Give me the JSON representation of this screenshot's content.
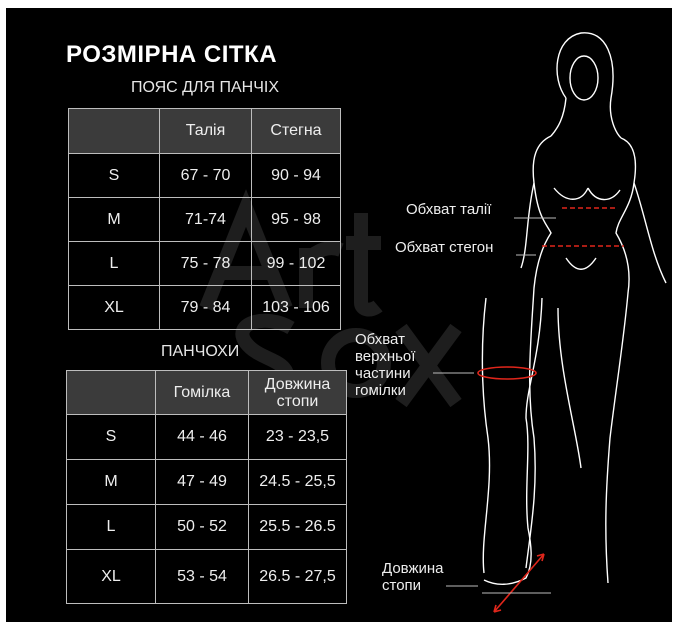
{
  "title": "РОЗМІРНА СІТКА",
  "watermark": "Art of Sox",
  "belt_table": {
    "caption": "ПОЯС ДЛЯ ПАНЧІХ",
    "headers": [
      "",
      "Талія",
      "Стегна"
    ],
    "rows": [
      [
        "S",
        "67 - 70",
        "90 - 94"
      ],
      [
        "M",
        "71-74",
        "95 - 98"
      ],
      [
        "L",
        "75 - 78",
        "99 - 102"
      ],
      [
        "XL",
        "79 - 84",
        "103 - 106"
      ]
    ]
  },
  "stockings_table": {
    "caption": "ПАНЧОХИ",
    "headers": [
      "",
      "Гомілка",
      "Довжина стопи"
    ],
    "rows": [
      [
        "S",
        "44 - 46",
        "23 - 23,5"
      ],
      [
        "M",
        "47 - 49",
        "24.5 - 25,5"
      ],
      [
        "L",
        "50 - 52",
        "25.5 - 26.5"
      ],
      [
        "XL",
        "53 - 54",
        "26.5 - 27,5"
      ]
    ]
  },
  "figure_labels": {
    "waist": "Обхват талії",
    "hips": "Обхват стегон",
    "upper_thigh": "Обхват верхньої частини гомілки",
    "foot_length": "Довжина стопи"
  },
  "colors": {
    "background": "#000000",
    "header_cell": "#3b3b3b",
    "measure_line": "#e0261b"
  }
}
